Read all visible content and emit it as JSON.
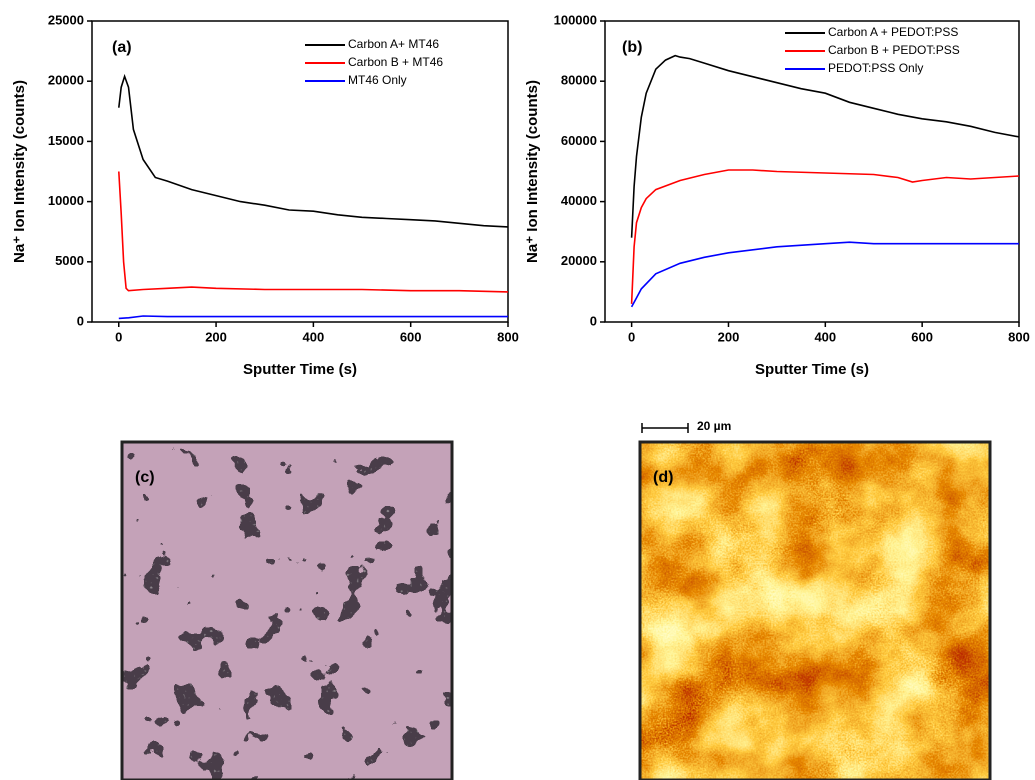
{
  "chart_data": [
    {
      "type": "line",
      "annotation": "(a)",
      "xlabel": "Sputter Time (s)",
      "ylabel": "Na⁺ Ion Intensity (counts)",
      "xlim": [
        -55,
        800
      ],
      "xticks": [
        0,
        200,
        400,
        600,
        800
      ],
      "ylim": [
        0,
        25000
      ],
      "yticks": [
        0,
        5000,
        10000,
        15000,
        20000,
        25000
      ],
      "legend": "upper right",
      "series": [
        {
          "name": "Carbon A+ MT46",
          "color": "#000000",
          "x": [
            0,
            5,
            12,
            20,
            30,
            50,
            75,
            100,
            150,
            200,
            250,
            300,
            350,
            400,
            450,
            500,
            550,
            600,
            650,
            700,
            750,
            800
          ],
          "values": [
            17800,
            19500,
            20400,
            19500,
            16000,
            13500,
            12000,
            11700,
            11000,
            10500,
            10000,
            9700,
            9300,
            9200,
            8900,
            8700,
            8600,
            8500,
            8400,
            8200,
            8000,
            7900
          ]
        },
        {
          "name": "Carbon B + MT46",
          "color": "#ff0000",
          "x": [
            0,
            5,
            10,
            15,
            20,
            50,
            100,
            150,
            200,
            300,
            400,
            500,
            600,
            700,
            800
          ],
          "values": [
            12500,
            9000,
            5000,
            2800,
            2600,
            2700,
            2800,
            2900,
            2800,
            2700,
            2700,
            2700,
            2600,
            2600,
            2500
          ]
        },
        {
          "name": "MT46 Only",
          "color": "#0000ff",
          "x": [
            0,
            20,
            50,
            100,
            200,
            400,
            600,
            800
          ],
          "values": [
            300,
            350,
            500,
            450,
            450,
            450,
            450,
            450
          ]
        }
      ]
    },
    {
      "type": "line",
      "annotation": "(b)",
      "xlabel": "Sputter Time (s)",
      "ylabel": "Na⁺ Ion Intensity (counts)",
      "xlim": [
        -55,
        800
      ],
      "xticks": [
        0,
        200,
        400,
        600,
        800
      ],
      "ylim": [
        0,
        100000
      ],
      "yticks": [
        0,
        20000,
        40000,
        60000,
        80000,
        100000
      ],
      "legend": "upper right",
      "series": [
        {
          "name": "Carbon A + PEDOT:PSS",
          "color": "#000000",
          "x": [
            0,
            5,
            10,
            20,
            30,
            50,
            70,
            90,
            100,
            120,
            150,
            200,
            250,
            300,
            350,
            400,
            450,
            500,
            550,
            600,
            650,
            700,
            750,
            800
          ],
          "values": [
            28000,
            45000,
            55000,
            68000,
            76000,
            84000,
            87000,
            88500,
            88000,
            87500,
            86000,
            83500,
            81500,
            79500,
            77500,
            76000,
            73000,
            71000,
            69000,
            67500,
            66500,
            65000,
            63000,
            61500
          ]
        },
        {
          "name": "Carbon B + PEDOT:PSS",
          "color": "#ff0000",
          "x": [
            0,
            5,
            10,
            20,
            30,
            50,
            100,
            150,
            200,
            250,
            300,
            400,
            500,
            550,
            580,
            600,
            650,
            700,
            800
          ],
          "values": [
            6000,
            25000,
            33000,
            38000,
            41000,
            44000,
            47000,
            49000,
            50500,
            50500,
            50000,
            49500,
            49000,
            48000,
            46500,
            47000,
            48000,
            47500,
            48500
          ]
        },
        {
          "name": "PEDOT:PSS Only",
          "color": "#0000ff",
          "x": [
            0,
            10,
            20,
            50,
            100,
            150,
            200,
            300,
            400,
            450,
            500,
            600,
            700,
            800
          ],
          "values": [
            5000,
            8000,
            11000,
            16000,
            19500,
            21500,
            23000,
            25000,
            26000,
            26500,
            26000,
            26000,
            26000,
            26000
          ]
        }
      ]
    }
  ],
  "images": [
    {
      "label": "(c)"
    },
    {
      "label": "(d)",
      "scale_bar": "20 µm"
    }
  ]
}
